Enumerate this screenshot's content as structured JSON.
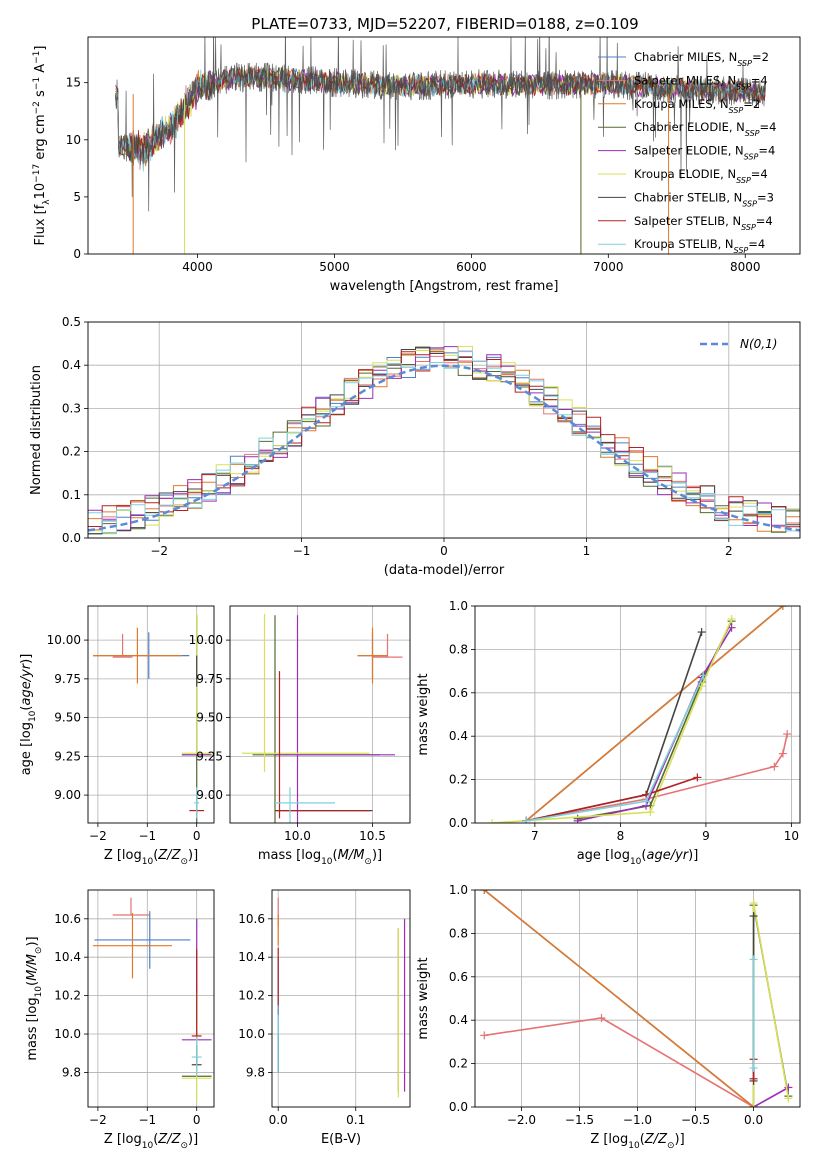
{
  "title": "PLATE=0733, MJD=52207, FIBERID=0188, z=0.109",
  "legend_labels": [
    "Chabrier MILES, N_SSP=2",
    "Salpeter MILES, N_SSP=4",
    "Kroupa MILES, N_SSP=2",
    "Chabrier ELODIE, N_SSP=4",
    "Salpeter ELODIE, N_SSP=4",
    "Kroupa ELODIE, N_SSP=4",
    "Chabrier STELIB, N_SSP=3",
    "Salpeter STELIB, N_SSP=4",
    "Kroupa STELIB, N_SSP=4"
  ],
  "series_colors": [
    "#4f7fc4",
    "#e57373",
    "#e0792a",
    "#556b2f",
    "#9a2fb5",
    "#d8e05a",
    "#444444",
    "#b22222",
    "#7fd0de"
  ],
  "chart_data": [
    {
      "id": "spectrum",
      "type": "line",
      "xlabel": "wavelength [Angstrom, rest frame]",
      "ylabel": "Flux [f_λ10^-17 erg cm^-2 s^-1 A^-1]",
      "xlim": [
        3200,
        8400
      ],
      "ylim": [
        0,
        19
      ],
      "xticks": [
        4000,
        5000,
        6000,
        7000,
        8000
      ],
      "yticks": [
        0,
        5,
        10,
        15
      ],
      "grid": false,
      "legend": "right",
      "observed_range": [
        3400,
        8150
      ],
      "continuum": [
        [
          3420,
          9.6
        ],
        [
          3600,
          9.0
        ],
        [
          3800,
          11.0
        ],
        [
          4000,
          14.5
        ],
        [
          4300,
          15.5
        ],
        [
          4600,
          15.4
        ],
        [
          5000,
          15.0
        ],
        [
          5500,
          14.7
        ],
        [
          6000,
          14.9
        ],
        [
          6500,
          14.8
        ],
        [
          7000,
          14.9
        ],
        [
          7500,
          14.5
        ],
        [
          8000,
          14.2
        ],
        [
          8150,
          14.0
        ]
      ]
    },
    {
      "id": "residuals",
      "type": "line",
      "xlabel": "(data-model)/error",
      "ylabel": "Normed distribution",
      "xlim": [
        -2.5,
        2.5
      ],
      "ylim": [
        0,
        0.5
      ],
      "xticks": [
        -2,
        -1,
        0,
        1,
        2
      ],
      "yticks": [
        0.0,
        0.1,
        0.2,
        0.3,
        0.4,
        0.5
      ],
      "grid": true,
      "legend": "top-right",
      "reference_label": "N(0,1)",
      "bin_width": 0.1
    },
    {
      "id": "age_vs_Z",
      "type": "scatter",
      "xlabel": "Z [log10(Z/Z⊙)]",
      "ylabel": "age [log10(age/yr)]",
      "xlim": [
        -2.2,
        0.35
      ],
      "ylim": [
        8.82,
        10.22
      ],
      "xticks": [
        -2,
        -1,
        0
      ],
      "yticks": [
        9.0,
        9.25,
        9.5,
        9.75,
        10.0
      ],
      "grid": true,
      "points": [
        {
          "s": 0,
          "x": -0.97,
          "y": 9.9,
          "xerr": [
            1.12,
            0.82
          ],
          "yerr": [
            0.15,
            0.15
          ]
        },
        {
          "s": 1,
          "x": -1.5,
          "y": 9.89,
          "xerr": [
            0.2,
            0.2
          ],
          "yerr": [
            0.0,
            0.15
          ]
        },
        {
          "s": 2,
          "x": -1.2,
          "y": 9.9,
          "xerr": [
            0.9,
            0.9
          ],
          "yerr": [
            0.18,
            0.18
          ]
        },
        {
          "s": 3,
          "x": 0.0,
          "y": 9.26,
          "xerr": [
            0.3,
            0.3
          ],
          "yerr": [
            0.9,
            0.9
          ]
        },
        {
          "s": 4,
          "x": 0.0,
          "y": 9.26,
          "xerr": [
            0.3,
            0.3
          ],
          "yerr": [
            0.0,
            0.0
          ]
        },
        {
          "s": 5,
          "x": 0.0,
          "y": 9.27,
          "xerr": [
            0.3,
            0.3
          ],
          "yerr": [
            0.0,
            0.9
          ]
        },
        {
          "s": 6,
          "x": 0.0,
          "y": 9.8,
          "xerr": [
            0.0,
            0.0
          ],
          "yerr": [
            0.1,
            0.1
          ]
        },
        {
          "s": 7,
          "x": 0.0,
          "y": 8.9,
          "xerr": [
            0.15,
            0.15
          ],
          "yerr": [
            0.0,
            0.0
          ]
        },
        {
          "s": 8,
          "x": 0.0,
          "y": 8.95,
          "xerr": [
            0.05,
            0.05
          ],
          "yerr": [
            0.1,
            0.1
          ]
        }
      ]
    },
    {
      "id": "age_vs_mass",
      "type": "scatter",
      "xlabel": "mass [log10(M/M⊙)]",
      "ylabel": "",
      "xlim": [
        9.55,
        10.75
      ],
      "ylim": [
        8.82,
        10.22
      ],
      "xticks": [
        10.0,
        10.5
      ],
      "yticks": [
        9.0,
        9.25,
        9.5,
        9.75,
        10.0
      ],
      "grid": true,
      "points": [
        {
          "s": 0,
          "x": 10.5,
          "y": 9.9,
          "xerr": [
            0.1,
            0.1
          ],
          "yerr": [
            0.15,
            0.15
          ]
        },
        {
          "s": 1,
          "x": 10.6,
          "y": 9.89,
          "xerr": [
            0.1,
            0.1
          ],
          "yerr": [
            0.0,
            0.15
          ]
        },
        {
          "s": 2,
          "x": 10.5,
          "y": 9.9,
          "xerr": [
            0.1,
            0.1
          ],
          "yerr": [
            0.18,
            0.18
          ]
        },
        {
          "s": 3,
          "x": 9.85,
          "y": 9.26,
          "xerr": [
            0.15,
            0.7
          ],
          "yerr": [
            0.9,
            0.9
          ]
        },
        {
          "s": 4,
          "x": 10.0,
          "y": 9.26,
          "xerr": [
            0.15,
            0.65
          ],
          "yerr": [
            0.9,
            0.9
          ]
        },
        {
          "s": 5,
          "x": 9.78,
          "y": 9.27,
          "xerr": [
            0.15,
            0.7
          ],
          "yerr": [
            0.12,
            0.9
          ]
        },
        {
          "s": 6,
          "x": 10.2,
          "y": 8.9,
          "xerr": [
            0.35,
            0.3
          ],
          "yerr": [
            0.0,
            0.0
          ]
        },
        {
          "s": 7,
          "x": 9.88,
          "y": 8.9,
          "xerr": [
            0.02,
            0.6
          ],
          "yerr": [
            0.05,
            0.9
          ]
        },
        {
          "s": 8,
          "x": 9.95,
          "y": 8.95,
          "xerr": [
            0.1,
            0.3
          ],
          "yerr": [
            0.25,
            0.1
          ]
        }
      ]
    },
    {
      "id": "massweight_vs_age",
      "type": "line",
      "xlabel": "age [log10(age/yr)]",
      "ylabel": "mass weight",
      "xlim": [
        6.3,
        10.1
      ],
      "ylim": [
        0,
        1
      ],
      "xticks": [
        7,
        8,
        9,
        10
      ],
      "yticks": [
        0.0,
        0.2,
        0.4,
        0.6,
        0.8,
        1.0
      ],
      "grid": true,
      "series": [
        {
          "s": 0,
          "x": [
            6.9,
            9.9
          ],
          "y": [
            0.01,
            1.0
          ]
        },
        {
          "s": 1,
          "x": [
            6.9,
            8.3,
            9.8,
            9.9,
            9.95
          ],
          "y": [
            0.01,
            0.11,
            0.26,
            0.32,
            0.41
          ]
        },
        {
          "s": 2,
          "x": [
            6.9,
            9.9
          ],
          "y": [
            0.01,
            1.0
          ]
        },
        {
          "s": 3,
          "x": [
            7.5,
            8.35,
            8.95,
            9.3
          ],
          "y": [
            0.02,
            0.08,
            0.65,
            0.93
          ]
        },
        {
          "s": 4,
          "x": [
            7.5,
            8.3,
            8.95,
            9.3
          ],
          "y": [
            0.01,
            0.08,
            0.67,
            0.9
          ]
        },
        {
          "s": 5,
          "x": [
            6.5,
            8.35,
            8.95,
            9.3
          ],
          "y": [
            0.0,
            0.05,
            0.63,
            0.94
          ]
        },
        {
          "s": 6,
          "x": [
            6.9,
            8.3,
            8.95
          ],
          "y": [
            0.01,
            0.13,
            0.88
          ]
        },
        {
          "s": 7,
          "x": [
            6.9,
            8.3,
            8.9
          ],
          "y": [
            0.01,
            0.13,
            0.21
          ]
        },
        {
          "s": 8,
          "x": [
            6.9,
            8.3,
            8.97
          ],
          "y": [
            0.01,
            0.1,
            0.68
          ]
        }
      ]
    },
    {
      "id": "mass_vs_Z",
      "type": "scatter",
      "xlabel": "Z [log10(Z/Z⊙)]",
      "ylabel": "mass [log10(M/M⊙)]",
      "xlim": [
        -2.2,
        0.35
      ],
      "ylim": [
        9.62,
        10.75
      ],
      "xticks": [
        -2,
        -1,
        0
      ],
      "yticks": [
        9.8,
        10.0,
        10.2,
        10.4,
        10.6
      ],
      "grid": true,
      "points": [
        {
          "s": 0,
          "x": -0.95,
          "y": 10.49,
          "xerr": [
            1.12,
            0.82
          ],
          "yerr": [
            0.15,
            0.15
          ]
        },
        {
          "s": 1,
          "x": -1.33,
          "y": 10.62,
          "xerr": [
            0.37,
            0.37
          ],
          "yerr": [
            0.0,
            0.09
          ]
        },
        {
          "s": 2,
          "x": -1.3,
          "y": 10.46,
          "xerr": [
            0.8,
            0.8
          ],
          "yerr": [
            0.17,
            0.17
          ]
        },
        {
          "s": 3,
          "x": 0.0,
          "y": 9.78,
          "xerr": [
            0.3,
            0.3
          ],
          "yerr": [
            0.0,
            0.45
          ]
        },
        {
          "s": 4,
          "x": 0.0,
          "y": 9.97,
          "xerr": [
            0.3,
            0.3
          ],
          "yerr": [
            0.0,
            0.63
          ]
        },
        {
          "s": 5,
          "x": 0.0,
          "y": 9.77,
          "xerr": [
            0.3,
            0.3
          ],
          "yerr": [
            0.12,
            0.45
          ]
        },
        {
          "s": 6,
          "x": 0.0,
          "y": 9.84,
          "xerr": [
            0.1,
            0.1
          ],
          "yerr": [
            0.0,
            0.1
          ]
        },
        {
          "s": 7,
          "x": 0.0,
          "y": 9.99,
          "xerr": [
            0.1,
            0.1
          ],
          "yerr": [
            0.0,
            0.45
          ]
        },
        {
          "s": 8,
          "x": 0.0,
          "y": 9.88,
          "xerr": [
            0.1,
            0.1
          ],
          "yerr": [
            0.1,
            0.1
          ]
        }
      ]
    },
    {
      "id": "mass_vs_EBV",
      "type": "scatter",
      "xlabel": "E(B-V)",
      "ylabel": "",
      "xlim": [
        -0.008,
        0.17
      ],
      "ylim": [
        9.62,
        10.75
      ],
      "xticks": [
        0.0,
        0.1
      ],
      "yticks": [
        9.8,
        10.0,
        10.2,
        10.4,
        10.6
      ],
      "grid": true,
      "points": [
        {
          "s": 0,
          "x": 0.0,
          "y": 10.1,
          "xerr": [
            0.0,
            0.0
          ],
          "yerr": [
            0.3,
            0.3
          ]
        },
        {
          "s": 1,
          "x": 0.0,
          "y": 10.56,
          "xerr": [
            0.0,
            0.0
          ],
          "yerr": [
            0.0,
            0.15
          ]
        },
        {
          "s": 2,
          "x": 0.0,
          "y": 10.46,
          "xerr": [
            0.0,
            0.0
          ],
          "yerr": [
            0.0,
            0.16
          ]
        },
        {
          "s": 3,
          "x": 0.155,
          "y": 10.0,
          "xerr": [
            0.0,
            0.0
          ],
          "yerr": [
            0.3,
            0.55
          ]
        },
        {
          "s": 4,
          "x": 0.163,
          "y": 10.0,
          "xerr": [
            0.0,
            0.0
          ],
          "yerr": [
            0.3,
            0.6
          ]
        },
        {
          "s": 5,
          "x": 0.155,
          "y": 10.0,
          "xerr": [
            0.0,
            0.0
          ],
          "yerr": [
            0.33,
            0.55
          ]
        },
        {
          "s": 6,
          "x": 0.0,
          "y": 9.9,
          "xerr": [
            0.0,
            0.0
          ],
          "yerr": [
            0.1,
            0.1
          ]
        },
        {
          "s": 7,
          "x": 0.0,
          "y": 10.3,
          "xerr": [
            0.0,
            0.0
          ],
          "yerr": [
            0.15,
            0.15
          ]
        },
        {
          "s": 8,
          "x": 0.0,
          "y": 9.95,
          "xerr": [
            0.0,
            0.0
          ],
          "yerr": [
            0.15,
            0.15
          ]
        }
      ]
    },
    {
      "id": "massweight_vs_Z",
      "type": "line",
      "xlabel": "Z [log10(Z/Z⊙)]",
      "ylabel": "mass weight",
      "xlim": [
        -2.4,
        0.4
      ],
      "ylim": [
        0,
        1
      ],
      "xticks": [
        -2.0,
        -1.5,
        -1.0,
        -0.5,
        0.0
      ],
      "yticks": [
        0.0,
        0.2,
        0.4,
        0.6,
        0.8,
        1.0
      ],
      "grid": true,
      "series": [
        {
          "s": 0,
          "x": [
            -2.32,
            0.0
          ],
          "y": [
            1.0,
            0.0
          ]
        },
        {
          "s": 1,
          "x": [
            -2.32,
            -1.31,
            0.0
          ],
          "y": [
            0.33,
            0.41,
            0.0
          ]
        },
        {
          "s": 2,
          "x": [
            -2.32,
            0.0
          ],
          "y": [
            1.0,
            0.0
          ]
        },
        {
          "s": 3,
          "x": [
            0.0,
            0.0,
            0.3
          ],
          "y": [
            0.0,
            0.93,
            0.05
          ]
        },
        {
          "s": 4,
          "x": [
            0.0,
            0.0,
            0.3
          ],
          "y": [
            0.0,
            0.0,
            0.09
          ]
        },
        {
          "s": 5,
          "x": [
            0.0,
            0.0,
            0.3
          ],
          "y": [
            0.0,
            0.94,
            0.04
          ]
        },
        {
          "s": 6,
          "x": [
            0.0,
            0.0
          ],
          "y": [
            0.12,
            0.88
          ]
        },
        {
          "s": 7,
          "x": [
            0.0,
            0.0
          ],
          "y": [
            0.13,
            0.22
          ]
        },
        {
          "s": 8,
          "x": [
            0.0,
            0.0
          ],
          "y": [
            0.18,
            0.68
          ]
        }
      ]
    }
  ]
}
